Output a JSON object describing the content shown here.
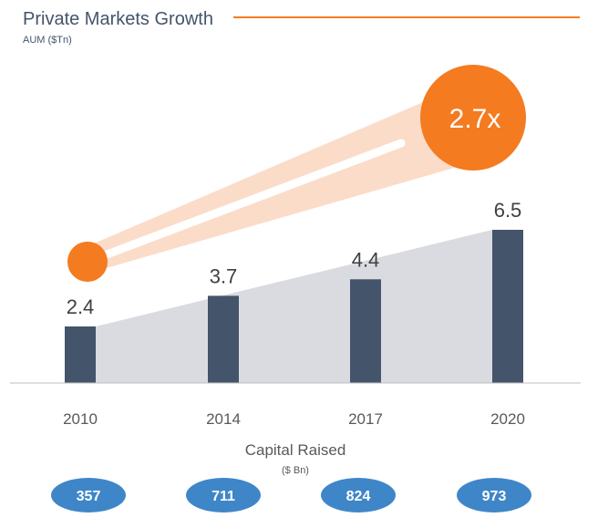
{
  "title": "Private Markets Growth",
  "subtitle": "AUM ($Tn)",
  "multiplier": "2.7x",
  "capital": {
    "title": "Capital Raised",
    "unit": "($ Bn)",
    "values": [
      "357",
      "711",
      "824",
      "973"
    ]
  },
  "colors": {
    "bar": "#44546a",
    "accent": "#f47b20",
    "area": "#dadbe0",
    "beam": "#fbdcc9",
    "pill": "#3f86c8",
    "title": "#44546a"
  },
  "chart_data": {
    "type": "bar",
    "title": "Private Markets Growth",
    "ylabel": "AUM ($Tn)",
    "categories": [
      "2010",
      "2014",
      "2017",
      "2020"
    ],
    "values": [
      2.4,
      3.7,
      4.4,
      6.5
    ],
    "value_labels": [
      "2.4",
      "3.7",
      "4.4",
      "6.5"
    ],
    "ylim": [
      0,
      6.5
    ],
    "grid": false,
    "annotation": "2.7x",
    "secondary": {
      "title": "Capital Raised",
      "unit": "($ Bn)",
      "values": [
        357,
        711,
        824,
        973
      ]
    }
  }
}
